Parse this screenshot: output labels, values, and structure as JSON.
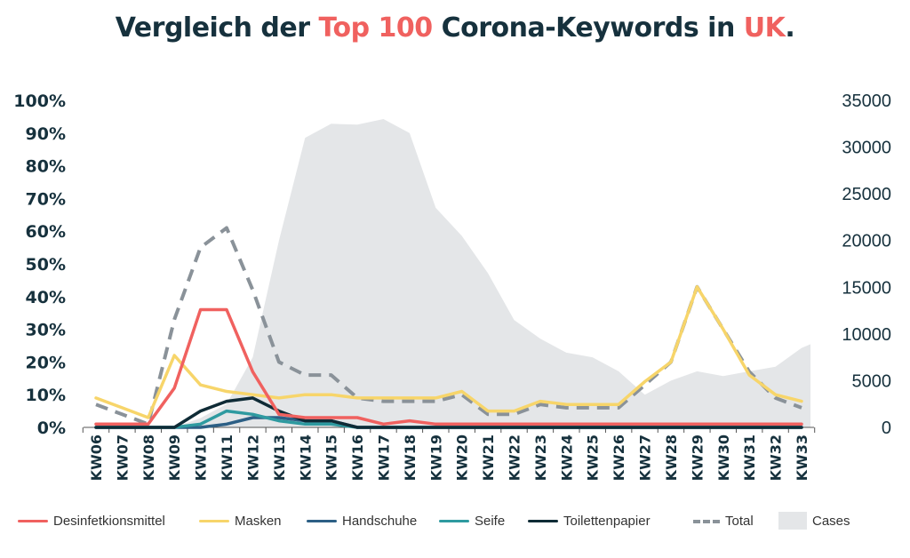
{
  "title": {
    "part1": "Vergleich der ",
    "highlight1": "Top 100",
    "part2": " Corona-Keywords in ",
    "highlight2": "UK",
    "part3": "."
  },
  "colors": {
    "title": "#16313d",
    "highlight": "#f0615f",
    "axis": "#16313d"
  },
  "chart_data": {
    "type": "line",
    "categories": [
      "KW06",
      "KW07",
      "KW08",
      "KW09",
      "KW10",
      "KW11",
      "KW12",
      "KW13",
      "KW14",
      "KW15",
      "KW16",
      "KW17",
      "KW18",
      "KW19",
      "KW20",
      "KW21",
      "KW22",
      "KW23",
      "KW24",
      "KW25",
      "KW26",
      "KW27",
      "KW28",
      "KW29",
      "KW30",
      "KW31",
      "KW32",
      "KW33"
    ],
    "y_left": {
      "min": 0,
      "max": 100,
      "ticks": [
        "0%",
        "10%",
        "20%",
        "30%",
        "40%",
        "50%",
        "60%",
        "70%",
        "80%",
        "90%",
        "100%"
      ]
    },
    "y_right": {
      "min": 0,
      "max": 35000,
      "ticks": [
        "0",
        "5000",
        "10000",
        "15000",
        "20000",
        "25000",
        "30000",
        "35000"
      ]
    },
    "series": [
      {
        "name": "Cases",
        "type": "area",
        "axis": "right",
        "color": "#e4e6e8",
        "values": [
          0,
          0,
          0,
          0,
          1000,
          2500,
          7500,
          20000,
          31000,
          32500,
          32400,
          33000,
          31500,
          23500,
          20500,
          16500,
          11500,
          9500,
          8000,
          7500,
          6000,
          3500,
          5000,
          6000,
          5500,
          6000,
          6500,
          8500
        ]
      },
      {
        "name": "Total",
        "type": "dashed",
        "axis": "left",
        "color": "#8a9299",
        "values": [
          7,
          4,
          1,
          33,
          55,
          61,
          42,
          20,
          16,
          16,
          9,
          8,
          8,
          8,
          10,
          4,
          4,
          7,
          6,
          6,
          6,
          13,
          20,
          43,
          30,
          17,
          9,
          6
        ]
      },
      {
        "name": "Masken",
        "axis": "left",
        "color": "#f7d56a",
        "values": [
          9,
          6,
          3,
          22,
          13,
          11,
          10,
          9,
          10,
          10,
          9,
          9,
          9,
          9,
          11,
          5,
          5,
          8,
          7,
          7,
          7,
          14,
          20,
          43,
          30,
          16,
          10,
          8
        ]
      },
      {
        "name": "Desinfetkionsmittel",
        "axis": "left",
        "color": "#f0615f",
        "values": [
          1,
          1,
          1,
          12,
          36,
          36,
          17,
          4,
          3,
          3,
          3,
          1,
          2,
          1,
          1,
          1,
          1,
          1,
          1,
          1,
          1,
          1,
          1,
          1,
          1,
          1,
          1,
          1
        ]
      },
      {
        "name": "Handschuhe",
        "axis": "left",
        "color": "#2c5f85",
        "values": [
          0,
          0,
          0,
          0,
          0,
          1,
          3,
          3,
          2,
          2,
          0,
          0,
          0,
          0,
          0,
          0,
          0,
          0,
          0,
          0,
          0,
          0,
          0,
          0,
          0,
          0,
          0,
          0
        ]
      },
      {
        "name": "Seife",
        "axis": "left",
        "color": "#2e9aa0",
        "values": [
          0,
          0,
          0,
          0,
          1,
          5,
          4,
          2,
          1,
          1,
          0,
          0,
          0,
          0,
          0,
          0,
          0,
          0,
          0,
          0,
          0,
          0,
          0,
          0,
          0,
          0,
          0,
          0
        ]
      },
      {
        "name": "Toilettenpapier",
        "axis": "left",
        "color": "#0f2b36",
        "values": [
          0,
          0,
          0,
          0,
          5,
          8,
          9,
          5,
          2,
          2,
          0,
          0,
          0,
          0,
          0,
          0,
          0,
          0,
          0,
          0,
          0,
          0,
          0,
          0,
          0,
          0,
          0,
          0
        ]
      }
    ],
    "legend": [
      {
        "name": "Desinfetkionsmittel",
        "style": "line",
        "color": "#f0615f"
      },
      {
        "name": "Masken",
        "style": "line",
        "color": "#f7d56a"
      },
      {
        "name": "Handschuhe",
        "style": "line",
        "color": "#2c5f85"
      },
      {
        "name": "Seife",
        "style": "line",
        "color": "#2e9aa0"
      },
      {
        "name": "Toilettenpapier",
        "style": "line",
        "color": "#0f2b36"
      },
      {
        "name": "Total",
        "style": "dashed",
        "color": "#8a9299"
      },
      {
        "name": "Cases",
        "style": "area",
        "color": "#e4e6e8"
      }
    ],
    "legend_position": "bottom"
  }
}
